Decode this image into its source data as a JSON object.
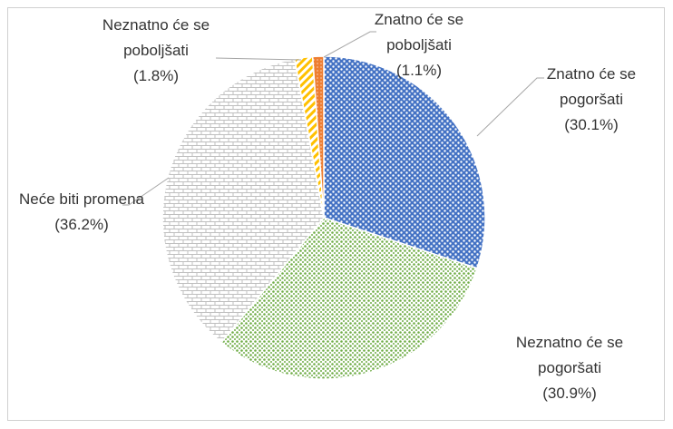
{
  "chart_data": {
    "type": "pie",
    "categories": [
      "Znatno će se pogoršati",
      "Neznatno će se pogoršati",
      "Neće biti promena",
      "Neznatno će se poboljšati",
      "Znatno će se poboljšati"
    ],
    "values": [
      30.1,
      30.9,
      36.2,
      1.8,
      1.1
    ],
    "value_labels": [
      "(30.1%)",
      "(30.9%)",
      "(36.2%)",
      "(1.8%)",
      "(1.1%)"
    ],
    "colors": [
      "#4472c4",
      "#70ad47",
      "#bfbfbf",
      "#ffc000",
      "#ed7d31"
    ]
  }
}
